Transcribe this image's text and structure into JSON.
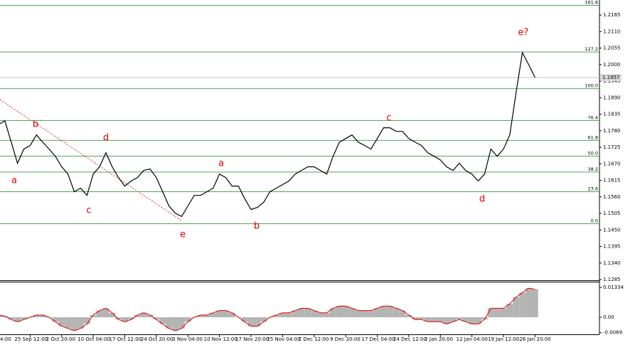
{
  "chart_data": [
    {
      "type": "line",
      "categories": [
        "4:00",
        null,
        null,
        null,
        null,
        "25 Sep 12:00",
        null,
        null,
        null,
        null,
        "2 Oct 20:00",
        null,
        null,
        null,
        null,
        "10 Oct 04:00",
        null,
        null,
        null,
        null,
        "17 Oct 12:00",
        null,
        null,
        null,
        null,
        "24 Oct 20:00",
        null,
        null,
        null,
        null,
        "3 Nov 04:00",
        null,
        null,
        null,
        null,
        "10 Nov 12:00",
        null,
        null,
        null,
        null,
        "17 Nov 20:00",
        null,
        null,
        null,
        null,
        "25 Nov 04:00",
        null,
        null,
        null,
        null,
        "2 Dec 12:00",
        null,
        null,
        null,
        null,
        "9 Dec 20:00",
        null,
        null,
        null,
        null,
        "17 Dec 04:00",
        null,
        null,
        null,
        null,
        "24 Dec 12:00",
        null,
        null,
        null,
        null,
        "2 Jan 20:00",
        null,
        null,
        null,
        null,
        "12 Jan 04:00",
        null,
        null,
        null,
        null,
        "19 Jan 12:00",
        null,
        null,
        null,
        null,
        "26 Jan 20:00"
      ],
      "series": [
        {
          "color": "#000000",
          "values": [
            1.1801,
            1.1813,
            1.1742,
            1.1672,
            1.1719,
            1.1731,
            1.1766,
            1.1742,
            1.1719,
            1.1695,
            1.166,
            1.1636,
            1.1577,
            1.1589,
            1.1565,
            1.1636,
            1.166,
            1.1707,
            1.166,
            1.1624,
            1.1596,
            1.1613,
            1.1624,
            1.1648,
            1.1653,
            1.1624,
            1.1577,
            1.153,
            1.1506,
            1.1495,
            1.153,
            1.1565,
            1.1565,
            1.1577,
            1.1589,
            1.1636,
            1.1624,
            1.1596,
            1.1596,
            1.1554,
            1.1518,
            1.1525,
            1.1542,
            1.1577,
            1.1589,
            1.1601,
            1.1613,
            1.1636,
            1.1648,
            1.166,
            1.166,
            1.1648,
            1.1636,
            1.1695,
            1.1742,
            1.1754,
            1.1766,
            1.1742,
            1.1731,
            1.1719,
            1.1754,
            1.179,
            1.179,
            1.1778,
            1.1778,
            1.1754,
            1.1742,
            1.1731,
            1.1707,
            1.1695,
            1.1683,
            1.166,
            1.1648,
            1.1672,
            1.1648,
            1.1636,
            1.1613,
            1.1636,
            1.1719,
            1.1695,
            1.1719,
            1.1766,
            1.1908,
            1.204,
            1.2,
            1.1957
          ]
        }
      ],
      "ylim": [
        1.1285,
        1.2215
      ],
      "yticks": [
        1.2165,
        {
          "value": 1.211,
          "label": "1.2110"
        },
        1.2055,
        {
          "value": 1.2,
          "label": "1.2000"
        },
        1.1945,
        {
          "value": 1.189,
          "label": "1.1890"
        },
        1.1835,
        {
          "value": 1.178,
          "label": "1.1780"
        },
        1.1725,
        {
          "value": 1.167,
          "label": "1.1670"
        },
        1.1615,
        {
          "value": 1.156,
          "label": "1.1560"
        },
        1.1505,
        {
          "value": 1.145,
          "label": "1.1450"
        },
        1.1395,
        {
          "value": 1.134,
          "label": "1.1340"
        },
        1.1285
      ],
      "fib_levels": [
        {
          "label": "161.8",
          "price": 1.2197
        },
        {
          "label": "127.2",
          "price": 1.2042
        },
        {
          "label": "100.0",
          "price": 1.192
        },
        {
          "label": "76.4",
          "price": 1.1814
        },
        {
          "label": "61.8",
          "price": 1.1748
        },
        {
          "label": "50.0",
          "price": 1.16955
        },
        {
          "label": "38.2",
          "price": 1.16425
        },
        {
          "label": "23.6",
          "price": 1.1577
        },
        {
          "label": "0.0",
          "price": 1.1471
        }
      ],
      "fib_color": "#3a9a3a",
      "current_price": 1.1957,
      "wave_labels": [
        "a",
        "b",
        "c",
        "d",
        "e",
        "a",
        "b",
        "c",
        "d",
        "e?"
      ]
    },
    {
      "type": "histogram-oscillator",
      "series": [
        {
          "color": "#b4b4b4",
          "line_color": "#e00000",
          "values": [
            0.001,
            0.0005,
            -0.001,
            -0.002,
            -0.001,
            0,
            0.001,
            0.001,
            0,
            -0.002,
            -0.004,
            -0.005,
            -0.006,
            -0.005,
            -0.003,
            0.001,
            0.003,
            0.004,
            0.002,
            -0.001,
            -0.002,
            -0.001,
            0.001,
            0.002,
            0.001,
            -0.001,
            -0.003,
            -0.005,
            -0.006,
            -0.005,
            -0.002,
            0,
            0.001,
            0.001,
            0.002,
            0.003,
            0.003,
            0.002,
            0,
            -0.002,
            -0.004,
            -0.004,
            -0.002,
            0,
            0.001,
            0.002,
            0.002,
            0.003,
            0.004,
            0.004,
            0.003,
            0.002,
            0.002,
            0.004,
            0.005,
            0.005,
            0.004,
            0.003,
            0.003,
            0.003,
            0.004,
            0.005,
            0.005,
            0.004,
            0.003,
            0.001,
            -0.001,
            -0.001,
            -0.002,
            -0.002,
            -0.002,
            -0.003,
            -0.002,
            -0.001,
            -0.002,
            -0.003,
            -0.003,
            -0.001,
            0.004,
            0.004,
            0.004,
            0.006,
            0.009,
            0.011,
            0.013,
            0.0125
          ]
        }
      ],
      "ylim": [
        -0.00762,
        0.01556
      ],
      "yticks": [
        0.01334,
        {
          "value": 0,
          "label": "0.00"
        },
        -0.0069
      ]
    }
  ]
}
